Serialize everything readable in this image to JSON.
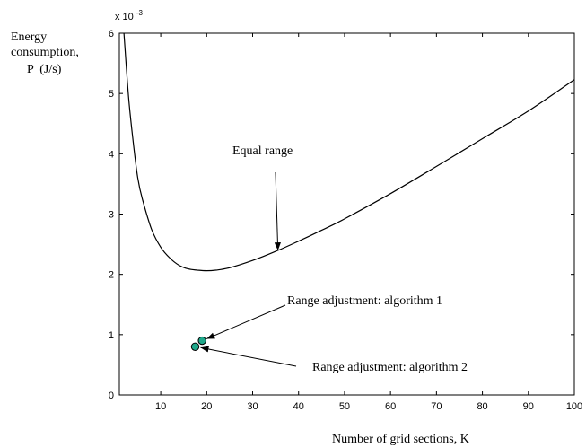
{
  "chart_data": {
    "type": "line",
    "ylabel_lines": [
      "Energy",
      "consumption,",
      "P  (J/s)"
    ],
    "xlabel": "Number of grid sections, K",
    "y_exponent_base": "x 10",
    "y_exponent_power": "-3",
    "xlim": [
      1,
      100
    ],
    "ylim": [
      0,
      6
    ],
    "x_ticks": [
      10,
      20,
      30,
      40,
      50,
      60,
      70,
      80,
      90,
      100
    ],
    "x_tick_labels": [
      "10",
      "20",
      "30",
      "40",
      "50",
      "60",
      "70",
      "80",
      "90",
      "100"
    ],
    "y_ticks": [
      0,
      1,
      2,
      3,
      4,
      5,
      6
    ],
    "y_tick_labels": [
      "0",
      "1",
      "2",
      "3",
      "4",
      "5",
      "6"
    ],
    "grid": false,
    "series": [
      {
        "name": "Equal range",
        "color": "#000000",
        "x": [
          2,
          3,
          4,
          5,
          6,
          8,
          10,
          12,
          14,
          16,
          18,
          20,
          22,
          25,
          30,
          35,
          40,
          45,
          50,
          60,
          70,
          80,
          90,
          100
        ],
        "y": [
          6.0,
          4.95,
          4.2,
          3.6,
          3.25,
          2.75,
          2.45,
          2.27,
          2.15,
          2.09,
          2.07,
          2.06,
          2.07,
          2.11,
          2.23,
          2.38,
          2.55,
          2.73,
          2.92,
          3.34,
          3.79,
          4.25,
          4.71,
          5.23
        ]
      }
    ],
    "points": [
      {
        "name": "Range adjustment: algorithm 1",
        "x": 19,
        "y": 0.9,
        "color": "#1fa88a"
      },
      {
        "name": "Range adjustment: algorithm 2",
        "x": 17.5,
        "y": 0.8,
        "color": "#1fa88a"
      }
    ],
    "annotations": [
      {
        "text": "Equal range",
        "target_x": 35.5,
        "target_y": 2.38
      },
      {
        "text": "Range adjustment: algorithm 1",
        "target_x": 19,
        "target_y": 0.9
      },
      {
        "text": "Range adjustment: algorithm 2",
        "target_x": 17.5,
        "target_y": 0.8
      }
    ]
  }
}
